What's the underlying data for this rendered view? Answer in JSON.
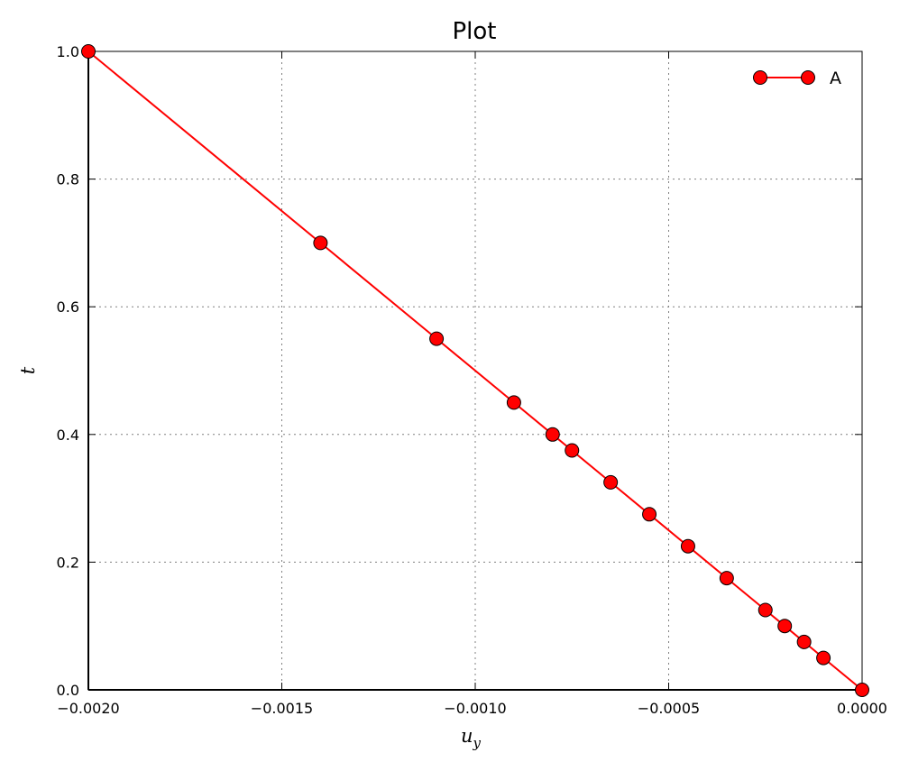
{
  "chart_data": {
    "type": "line",
    "title": "Plot",
    "xlabel": "u",
    "xlabel_sub": "y",
    "ylabel": "t",
    "xlim": [
      -0.002,
      0.0
    ],
    "ylim": [
      0.0,
      1.0
    ],
    "grid": true,
    "legend_position": "top-right",
    "xticks": [
      -0.002,
      -0.0015,
      -0.001,
      -0.0005,
      0.0
    ],
    "xtick_labels": [
      "−0.0020",
      "−0.0015",
      "−0.0010",
      "−0.0005",
      "0.0000"
    ],
    "yticks": [
      0.0,
      0.2,
      0.4,
      0.6,
      0.8,
      1.0
    ],
    "ytick_labels": [
      "0.0",
      "0.2",
      "0.4",
      "0.6",
      "0.8",
      "1.0"
    ],
    "series": [
      {
        "name": "A",
        "color": "#ff0000",
        "marker": "circle",
        "x": [
          0.0,
          -0.0001,
          -0.00015,
          -0.0002,
          -0.00025,
          -0.00035,
          -0.00045,
          -0.00055,
          -0.00065,
          -0.00075,
          -0.0008,
          -0.0009,
          -0.0011,
          -0.0014,
          -0.002
        ],
        "y": [
          0.0,
          0.05,
          0.075,
          0.1,
          0.125,
          0.175,
          0.225,
          0.275,
          0.325,
          0.375,
          0.4,
          0.45,
          0.55,
          0.7,
          1.0
        ]
      }
    ]
  }
}
